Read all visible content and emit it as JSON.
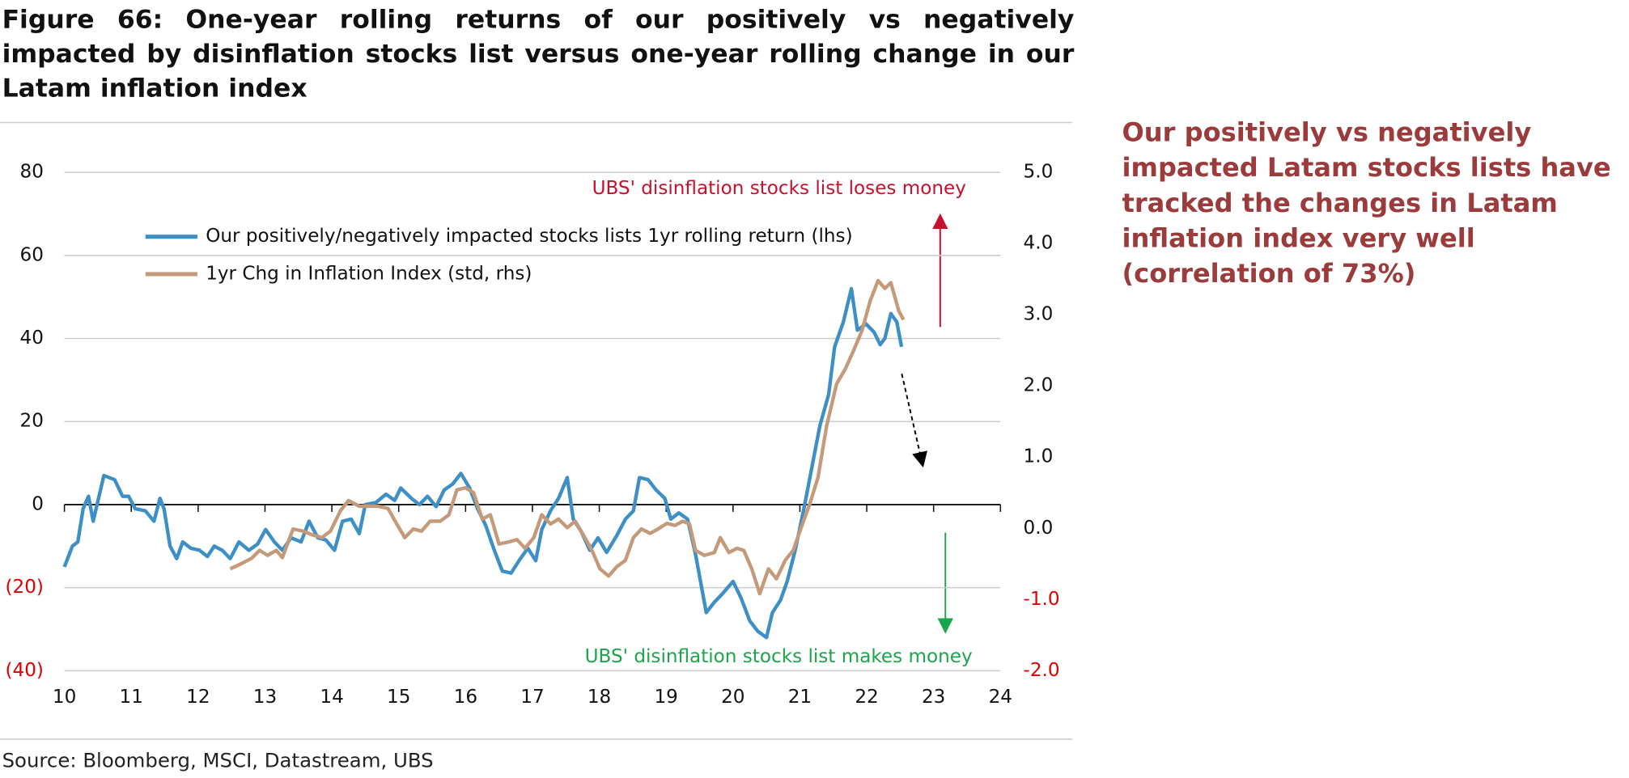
{
  "chart_data": {
    "type": "line",
    "title": "Figure 66: One-year rolling returns of our positively vs negatively impacted by disinflation stocks list versus one-year rolling change in our Latam inflation index",
    "note": "Our positively vs negatively impacted Latam stocks lists have tracked the changes in Latam inflation index very well (correlation of 73%)",
    "source": "Source: Bloomberg, MSCI, Datastream, UBS",
    "annotations": [
      {
        "text": "UBS' disinflation stocks list loses money",
        "color": "#c8102e"
      },
      {
        "text": "UBS' disinflation stocks list makes money",
        "color": "#1aa64a"
      }
    ],
    "xlim": [
      10,
      24
    ],
    "xticks": [
      10,
      11,
      12,
      13,
      14,
      15,
      16,
      17,
      18,
      19,
      20,
      21,
      22,
      23,
      24
    ],
    "ylim": [
      -40,
      80
    ],
    "yticks": [
      80,
      60,
      40,
      20,
      0,
      {
        "value": -20,
        "label": "(20)"
      },
      {
        "value": -40,
        "label": "(40)"
      }
    ],
    "y2lim": [
      -2,
      5
    ],
    "y2ticks": [
      {
        "value": 5,
        "label": "5.0"
      },
      {
        "value": 4,
        "label": "4.0"
      },
      {
        "value": 3,
        "label": "3.0"
      },
      {
        "value": 2,
        "label": "2.0"
      },
      {
        "value": 1,
        "label": "1.0"
      },
      {
        "value": 0,
        "label": "0.0"
      },
      {
        "value": -1,
        "label": "-1.0"
      },
      {
        "value": -2,
        "label": "-2.0"
      }
    ],
    "grid": true,
    "series": [
      {
        "name": "Our positively/negatively impacted stocks lists 1yr rolling return (lhs)",
        "color": "#3d8fc6",
        "x": [
          10.0,
          10.12,
          10.2,
          10.28,
          10.36,
          10.43,
          10.59,
          10.75,
          10.87,
          10.96,
          11.06,
          11.21,
          11.34,
          11.43,
          11.49,
          11.58,
          11.68,
          11.77,
          11.89,
          12.02,
          12.14,
          12.24,
          12.36,
          12.48,
          12.61,
          12.76,
          12.89,
          13.01,
          13.14,
          13.26,
          13.39,
          13.54,
          13.66,
          13.79,
          13.91,
          14.04,
          14.16,
          14.29,
          14.41,
          14.5,
          14.66,
          14.81,
          14.94,
          15.03,
          15.19,
          15.31,
          15.43,
          15.56,
          15.68,
          15.81,
          15.93,
          16.06,
          16.18,
          16.3,
          16.43,
          16.55,
          16.68,
          16.8,
          16.93,
          17.05,
          17.14,
          17.27,
          17.39,
          17.52,
          17.61,
          17.73,
          17.86,
          17.98,
          18.11,
          18.26,
          18.39,
          18.51,
          18.6,
          18.73,
          18.85,
          18.98,
          19.07,
          19.19,
          19.32,
          19.44,
          19.6,
          19.72,
          19.84,
          20.0,
          20.12,
          20.25,
          20.37,
          20.5,
          20.59,
          20.71,
          20.81,
          20.93,
          21.06,
          21.18,
          21.3,
          21.43,
          21.52,
          21.65,
          21.77,
          21.86,
          21.99,
          22.11,
          22.2,
          22.27,
          22.36,
          22.45,
          22.52
        ],
        "values": [
          -15,
          -10,
          -9,
          -1,
          2,
          -4,
          7,
          6,
          2,
          2,
          -1,
          -1.5,
          -4,
          1.5,
          -1,
          -10,
          -13,
          -9,
          -10.5,
          -11,
          -12.5,
          -10,
          -11,
          -13,
          -9,
          -11,
          -9.5,
          -6,
          -9,
          -11,
          -8,
          -9,
          -4,
          -8,
          -8.5,
          -11,
          -4,
          -3.5,
          -7,
          0,
          0.5,
          2.5,
          1,
          4,
          1.5,
          0,
          2,
          -0.5,
          3.5,
          5,
          7.5,
          4,
          -1,
          -5,
          -11,
          -16,
          -16.5,
          -13.5,
          -10.5,
          -13.5,
          -6,
          -1.5,
          1.5,
          6.5,
          -3.5,
          -6.5,
          -11,
          -8,
          -11.5,
          -7.5,
          -3.5,
          -1.5,
          6.5,
          6,
          3.5,
          1.5,
          -3.5,
          -2,
          -3.5,
          -12,
          -26,
          -23.5,
          -21.5,
          -18.5,
          -22.5,
          -28,
          -30.5,
          -32,
          -26,
          -23,
          -18.5,
          -11,
          -1,
          9,
          19,
          26.5,
          38,
          44,
          52,
          42,
          43.5,
          41.5,
          38.5,
          40,
          46,
          44,
          38
        ]
      },
      {
        "name": "1yr Chg in Inflation Index (std, rhs)",
        "color": "#c49a7a",
        "axis": "y2",
        "x": [
          12.48,
          12.64,
          12.8,
          12.92,
          13.04,
          13.17,
          13.26,
          13.42,
          13.57,
          13.7,
          13.85,
          13.98,
          14.13,
          14.25,
          14.41,
          14.56,
          14.69,
          14.84,
          14.97,
          15.09,
          15.22,
          15.34,
          15.47,
          15.62,
          15.75,
          15.87,
          16.0,
          16.12,
          16.25,
          16.37,
          16.5,
          16.65,
          16.77,
          16.89,
          17.02,
          17.14,
          17.27,
          17.39,
          17.52,
          17.64,
          17.76,
          17.89,
          18.01,
          18.14,
          18.26,
          18.39,
          18.51,
          18.63,
          18.76,
          18.88,
          19.01,
          19.13,
          19.25,
          19.35,
          19.44,
          19.57,
          19.72,
          19.81,
          19.94,
          20.06,
          20.16,
          20.28,
          20.4,
          20.53,
          20.65,
          20.78,
          20.9,
          21.02,
          21.15,
          21.27,
          21.4,
          21.55,
          21.68,
          21.8,
          21.93,
          22.05,
          22.17,
          22.27,
          22.36,
          22.48,
          22.55
        ],
        "values": [
          -0.57,
          -0.5,
          -0.42,
          -0.31,
          -0.38,
          -0.31,
          -0.41,
          -0.01,
          -0.04,
          -0.09,
          -0.13,
          -0.04,
          0.25,
          0.39,
          0.31,
          0.31,
          0.31,
          0.28,
          0.06,
          -0.13,
          -0.01,
          -0.04,
          0.1,
          0.1,
          0.19,
          0.54,
          0.57,
          0.5,
          0.13,
          0.19,
          -0.22,
          -0.19,
          -0.16,
          -0.28,
          -0.13,
          0.19,
          0.06,
          0.13,
          0.01,
          0.1,
          -0.09,
          -0.31,
          -0.57,
          -0.67,
          -0.54,
          -0.45,
          -0.13,
          -0.01,
          -0.07,
          -0.01,
          0.07,
          0.04,
          0.1,
          0.06,
          -0.31,
          -0.38,
          -0.34,
          -0.13,
          -0.34,
          -0.28,
          -0.31,
          -0.57,
          -0.92,
          -0.57,
          -0.71,
          -0.45,
          -0.31,
          0.01,
          0.35,
          0.71,
          1.44,
          2.03,
          2.24,
          2.49,
          2.78,
          3.19,
          3.48,
          3.37,
          3.45,
          3.05,
          2.93
        ]
      }
    ]
  }
}
